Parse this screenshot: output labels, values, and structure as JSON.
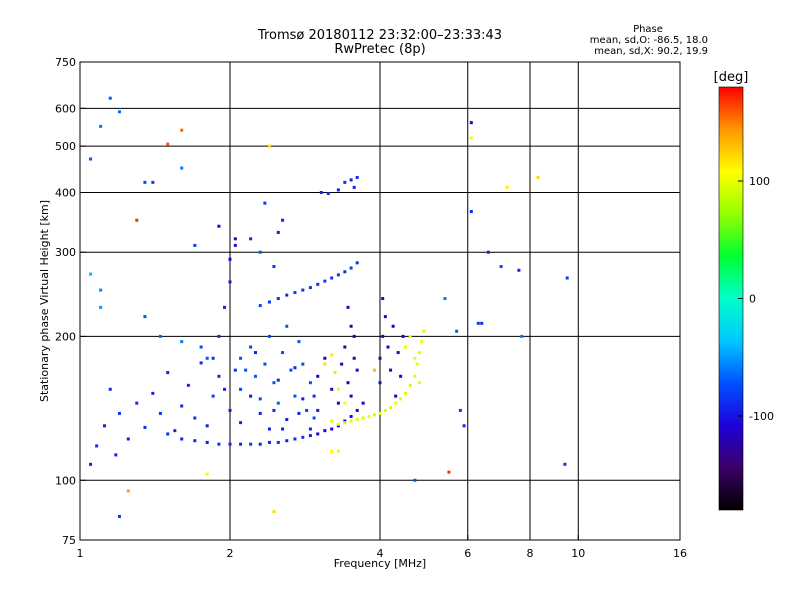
{
  "chart_data": {
    "type": "scatter",
    "title_line1": "Tromsø 20180112 23:32:00–23:33:43",
    "title_line2": "RwPretec (8p)",
    "xlabel": "Frequency [MHz]",
    "ylabel": "Stationary phase Virtual Height [km]",
    "x_scale": "log",
    "y_scale": "log",
    "xlim": [
      1,
      16
    ],
    "ylim": [
      75,
      750
    ],
    "x_ticks": [
      1,
      2,
      4,
      6,
      8,
      10,
      16
    ],
    "x_tick_labels": [
      "1",
      "2",
      "4",
      "6",
      "8",
      "10",
      "16"
    ],
    "y_ticks": [
      75,
      100,
      200,
      300,
      400,
      500,
      600,
      750
    ],
    "y_tick_labels": [
      "75",
      "100",
      "200",
      "300",
      "400",
      "500",
      "600",
      "750"
    ],
    "grid": true,
    "phase_info": {
      "title": "Phase",
      "line_o": "mean, sd,O:  -86.5, 18.0",
      "line_x": "mean, sd,X:  90.2, 19.9"
    },
    "colorbar": {
      "label": "[deg]",
      "range": [
        -180,
        180
      ],
      "ticks": [
        100,
        0,
        -100
      ],
      "tick_labels": [
        "100",
        "0",
        "-100"
      ],
      "colors": [
        "#000000",
        "#3b0066",
        "#1e00dc",
        "#0050ff",
        "#00c8ff",
        "#00ffc8",
        "#00ff32",
        "#96ff00",
        "#ffff00",
        "#ff9600",
        "#ff0000"
      ]
    },
    "series": [
      {
        "points": [
          [
            1.05,
            108,
            -95
          ],
          [
            1.08,
            118,
            -90
          ],
          [
            1.12,
            130,
            -95
          ],
          [
            1.15,
            155,
            -88
          ],
          [
            1.18,
            113,
            -92
          ],
          [
            1.2,
            138,
            -85
          ],
          [
            1.25,
            122,
            -95
          ],
          [
            1.3,
            145,
            -90
          ],
          [
            1.35,
            129,
            -88
          ],
          [
            1.4,
            152,
            -92
          ],
          [
            1.45,
            138,
            -85
          ],
          [
            1.5,
            168,
            -95
          ],
          [
            1.55,
            127,
            -90
          ],
          [
            1.6,
            143,
            -88
          ],
          [
            1.65,
            158,
            -92
          ],
          [
            1.7,
            135,
            -85
          ],
          [
            1.75,
            176,
            -90
          ],
          [
            1.8,
            130,
            -95
          ],
          [
            1.85,
            150,
            -80
          ],
          [
            1.9,
            165,
            -90
          ],
          [
            1.5,
            125,
            -88
          ],
          [
            1.6,
            122,
            -92
          ],
          [
            1.7,
            121,
            -90
          ],
          [
            1.8,
            120,
            -95
          ],
          [
            1.9,
            119,
            -88
          ],
          [
            2.0,
            119,
            -92
          ],
          [
            2.1,
            119,
            -90
          ],
          [
            2.2,
            119,
            -85
          ],
          [
            2.3,
            119,
            -95
          ],
          [
            2.4,
            120,
            -90
          ],
          [
            2.5,
            120,
            -88
          ],
          [
            2.6,
            121,
            -92
          ],
          [
            2.7,
            122,
            -90
          ],
          [
            2.8,
            123,
            -85
          ],
          [
            2.9,
            124,
            -95
          ],
          [
            3.0,
            125,
            -110
          ],
          [
            3.1,
            127,
            -115
          ],
          [
            3.2,
            128,
            -105
          ],
          [
            3.3,
            130,
            -110
          ],
          [
            3.4,
            133,
            -115
          ],
          [
            3.5,
            136,
            -105
          ],
          [
            3.6,
            140,
            -110
          ],
          [
            3.7,
            145,
            -115
          ],
          [
            1.85,
            180,
            -85
          ],
          [
            1.9,
            200,
            -90
          ],
          [
            1.95,
            230,
            -95
          ],
          [
            2.0,
            260,
            -100
          ],
          [
            2.0,
            290,
            -105
          ],
          [
            2.05,
            320,
            -110
          ],
          [
            2.1,
            180,
            -70
          ],
          [
            2.1,
            155,
            -75
          ],
          [
            2.15,
            170,
            -72
          ],
          [
            2.2,
            190,
            -78
          ],
          [
            2.25,
            165,
            -70
          ],
          [
            2.3,
            148,
            -75
          ],
          [
            2.35,
            175,
            -72
          ],
          [
            2.4,
            200,
            -78
          ],
          [
            2.45,
            160,
            -70
          ],
          [
            2.5,
            145,
            -68
          ],
          [
            2.55,
            185,
            -74
          ],
          [
            2.6,
            210,
            -70
          ],
          [
            2.65,
            170,
            -76
          ],
          [
            2.7,
            150,
            -72
          ],
          [
            2.75,
            195,
            -70
          ],
          [
            2.8,
            175,
            -74
          ],
          [
            2.85,
            140,
            -78
          ],
          [
            2.9,
            160,
            -72
          ],
          [
            2.95,
            135,
            -76
          ],
          [
            2.0,
            140,
            -95
          ],
          [
            2.1,
            132,
            -90
          ],
          [
            2.2,
            150,
            -100
          ],
          [
            2.3,
            138,
            -92
          ],
          [
            2.4,
            128,
            -96
          ],
          [
            2.5,
            162,
            -88
          ],
          [
            2.6,
            134,
            -94
          ],
          [
            2.7,
            172,
            -90
          ],
          [
            2.8,
            148,
            -96
          ],
          [
            2.9,
            128,
            -92
          ],
          [
            3.0,
            140,
            -98
          ],
          [
            1.95,
            155,
            -92
          ],
          [
            2.05,
            170,
            -88
          ],
          [
            2.25,
            185,
            -94
          ],
          [
            2.45,
            140,
            -90
          ],
          [
            2.55,
            128,
            -96
          ],
          [
            2.75,
            138,
            -92
          ],
          [
            2.95,
            150,
            -88
          ],
          [
            2.5,
            240,
            -85
          ],
          [
            2.6,
            244,
            -88
          ],
          [
            2.7,
            247,
            -82
          ],
          [
            2.8,
            250,
            -86
          ],
          [
            2.9,
            253,
            -84
          ],
          [
            3.0,
            257,
            -88
          ],
          [
            3.1,
            261,
            -82
          ],
          [
            3.2,
            265,
            -86
          ],
          [
            3.3,
            269,
            -84
          ],
          [
            3.4,
            273,
            -88
          ],
          [
            2.3,
            232,
            -80
          ],
          [
            2.4,
            236,
            -84
          ],
          [
            3.5,
            278,
            -82
          ],
          [
            3.6,
            285,
            -86
          ],
          [
            3.0,
            165,
            -110
          ],
          [
            3.1,
            180,
            -115
          ],
          [
            3.2,
            155,
            -120
          ],
          [
            3.3,
            145,
            -115
          ],
          [
            3.35,
            175,
            -120
          ],
          [
            3.4,
            190,
            -118
          ],
          [
            3.45,
            160,
            -122
          ],
          [
            3.5,
            150,
            -118
          ],
          [
            3.55,
            200,
            -115
          ],
          [
            3.5,
            210,
            -112
          ],
          [
            3.45,
            230,
            -115
          ],
          [
            3.55,
            180,
            -120
          ],
          [
            3.6,
            170,
            -118
          ],
          [
            3.05,
            400,
            -90
          ],
          [
            3.15,
            398,
            -88
          ],
          [
            3.3,
            405,
            -92
          ],
          [
            3.4,
            420,
            -88
          ],
          [
            3.5,
            425,
            -90
          ],
          [
            3.55,
            410,
            -92
          ],
          [
            3.6,
            430,
            -88
          ],
          [
            4.0,
            160,
            -105
          ],
          [
            4.0,
            180,
            -110
          ],
          [
            4.05,
            200,
            -108
          ],
          [
            4.1,
            220,
            -112
          ],
          [
            4.05,
            240,
            -108
          ],
          [
            4.15,
            190,
            -110
          ],
          [
            4.2,
            170,
            -106
          ],
          [
            4.3,
            150,
            -110
          ],
          [
            4.25,
            210,
            -108
          ],
          [
            4.35,
            185,
            -112
          ],
          [
            4.4,
            165,
            -108
          ],
          [
            4.45,
            200,
            -110
          ],
          [
            3.2,
            133,
            95
          ],
          [
            3.3,
            131,
            100
          ],
          [
            3.4,
            132,
            90
          ],
          [
            3.5,
            133,
            95
          ],
          [
            3.6,
            134,
            100
          ],
          [
            3.7,
            135,
            92
          ],
          [
            3.8,
            136,
            98
          ],
          [
            3.9,
            137,
            95
          ],
          [
            4.0,
            138,
            100
          ],
          [
            4.1,
            140,
            92
          ],
          [
            4.2,
            142,
            96
          ],
          [
            4.3,
            145,
            100
          ],
          [
            4.4,
            148,
            94
          ],
          [
            4.5,
            152,
            98
          ],
          [
            4.6,
            158,
            92
          ],
          [
            4.7,
            165,
            96
          ],
          [
            4.75,
            175,
            100
          ],
          [
            4.8,
            185,
            94
          ],
          [
            4.85,
            195,
            98
          ],
          [
            4.9,
            205,
            92
          ],
          [
            3.1,
            175,
            120
          ],
          [
            3.2,
            183,
            115
          ],
          [
            3.25,
            168,
            118
          ],
          [
            3.3,
            155,
            112
          ],
          [
            3.4,
            145,
            110
          ],
          [
            4.5,
            190,
            105
          ],
          [
            4.6,
            200,
            100
          ],
          [
            4.7,
            180,
            102
          ],
          [
            4.8,
            160,
            98
          ],
          [
            1.15,
            630,
            -70
          ],
          [
            1.1,
            550,
            -60
          ],
          [
            1.05,
            470,
            -70
          ],
          [
            1.2,
            590,
            -65
          ],
          [
            1.35,
            420,
            -75
          ],
          [
            1.4,
            420,
            -80
          ],
          [
            1.6,
            450,
            -60
          ],
          [
            1.7,
            310,
            -80
          ],
          [
            1.9,
            340,
            -110
          ],
          [
            2.05,
            310,
            -100
          ],
          [
            2.2,
            320,
            -90
          ],
          [
            2.35,
            380,
            -85
          ],
          [
            2.5,
            330,
            -95
          ],
          [
            2.45,
            280,
            -80
          ],
          [
            2.55,
            350,
            -90
          ],
          [
            2.3,
            300,
            -70
          ],
          [
            6.1,
            560,
            -110
          ],
          [
            6.1,
            365,
            -90
          ],
          [
            6.6,
            300,
            -95
          ],
          [
            7.0,
            280,
            -75
          ],
          [
            7.7,
            200,
            -60
          ],
          [
            8.3,
            430,
            120
          ],
          [
            9.5,
            265,
            -80
          ],
          [
            9.4,
            108,
            -85
          ],
          [
            5.7,
            205,
            -70
          ],
          [
            5.4,
            240,
            -60
          ],
          [
            5.8,
            140,
            -80
          ],
          [
            5.9,
            130,
            -90
          ],
          [
            4.7,
            100,
            -70
          ],
          [
            6.3,
            213,
            -85
          ],
          [
            6.4,
            213,
            -90
          ],
          [
            7.6,
            275,
            -90
          ],
          [
            1.1,
            250,
            -55
          ],
          [
            1.1,
            230,
            -50
          ],
          [
            1.05,
            270,
            -40
          ],
          [
            1.35,
            220,
            -70
          ],
          [
            1.45,
            200,
            -65
          ],
          [
            1.6,
            195,
            -60
          ],
          [
            1.75,
            190,
            -75
          ],
          [
            1.8,
            180,
            -70
          ],
          [
            1.2,
            84,
            -80
          ],
          [
            1.8,
            103,
            100
          ],
          [
            2.45,
            86,
            120
          ],
          [
            1.6,
            540,
            155
          ],
          [
            1.5,
            505,
            160
          ],
          [
            5.5,
            104,
            170
          ],
          [
            2.4,
            500,
            120
          ],
          [
            7.2,
            410,
            115
          ],
          [
            3.2,
            115,
            110
          ],
          [
            3.9,
            170,
            130
          ],
          [
            3.3,
            115,
            95
          ],
          [
            1.3,
            350,
            170
          ],
          [
            1.25,
            95,
            140
          ],
          [
            6.1,
            520,
            110
          ]
        ]
      }
    ]
  }
}
